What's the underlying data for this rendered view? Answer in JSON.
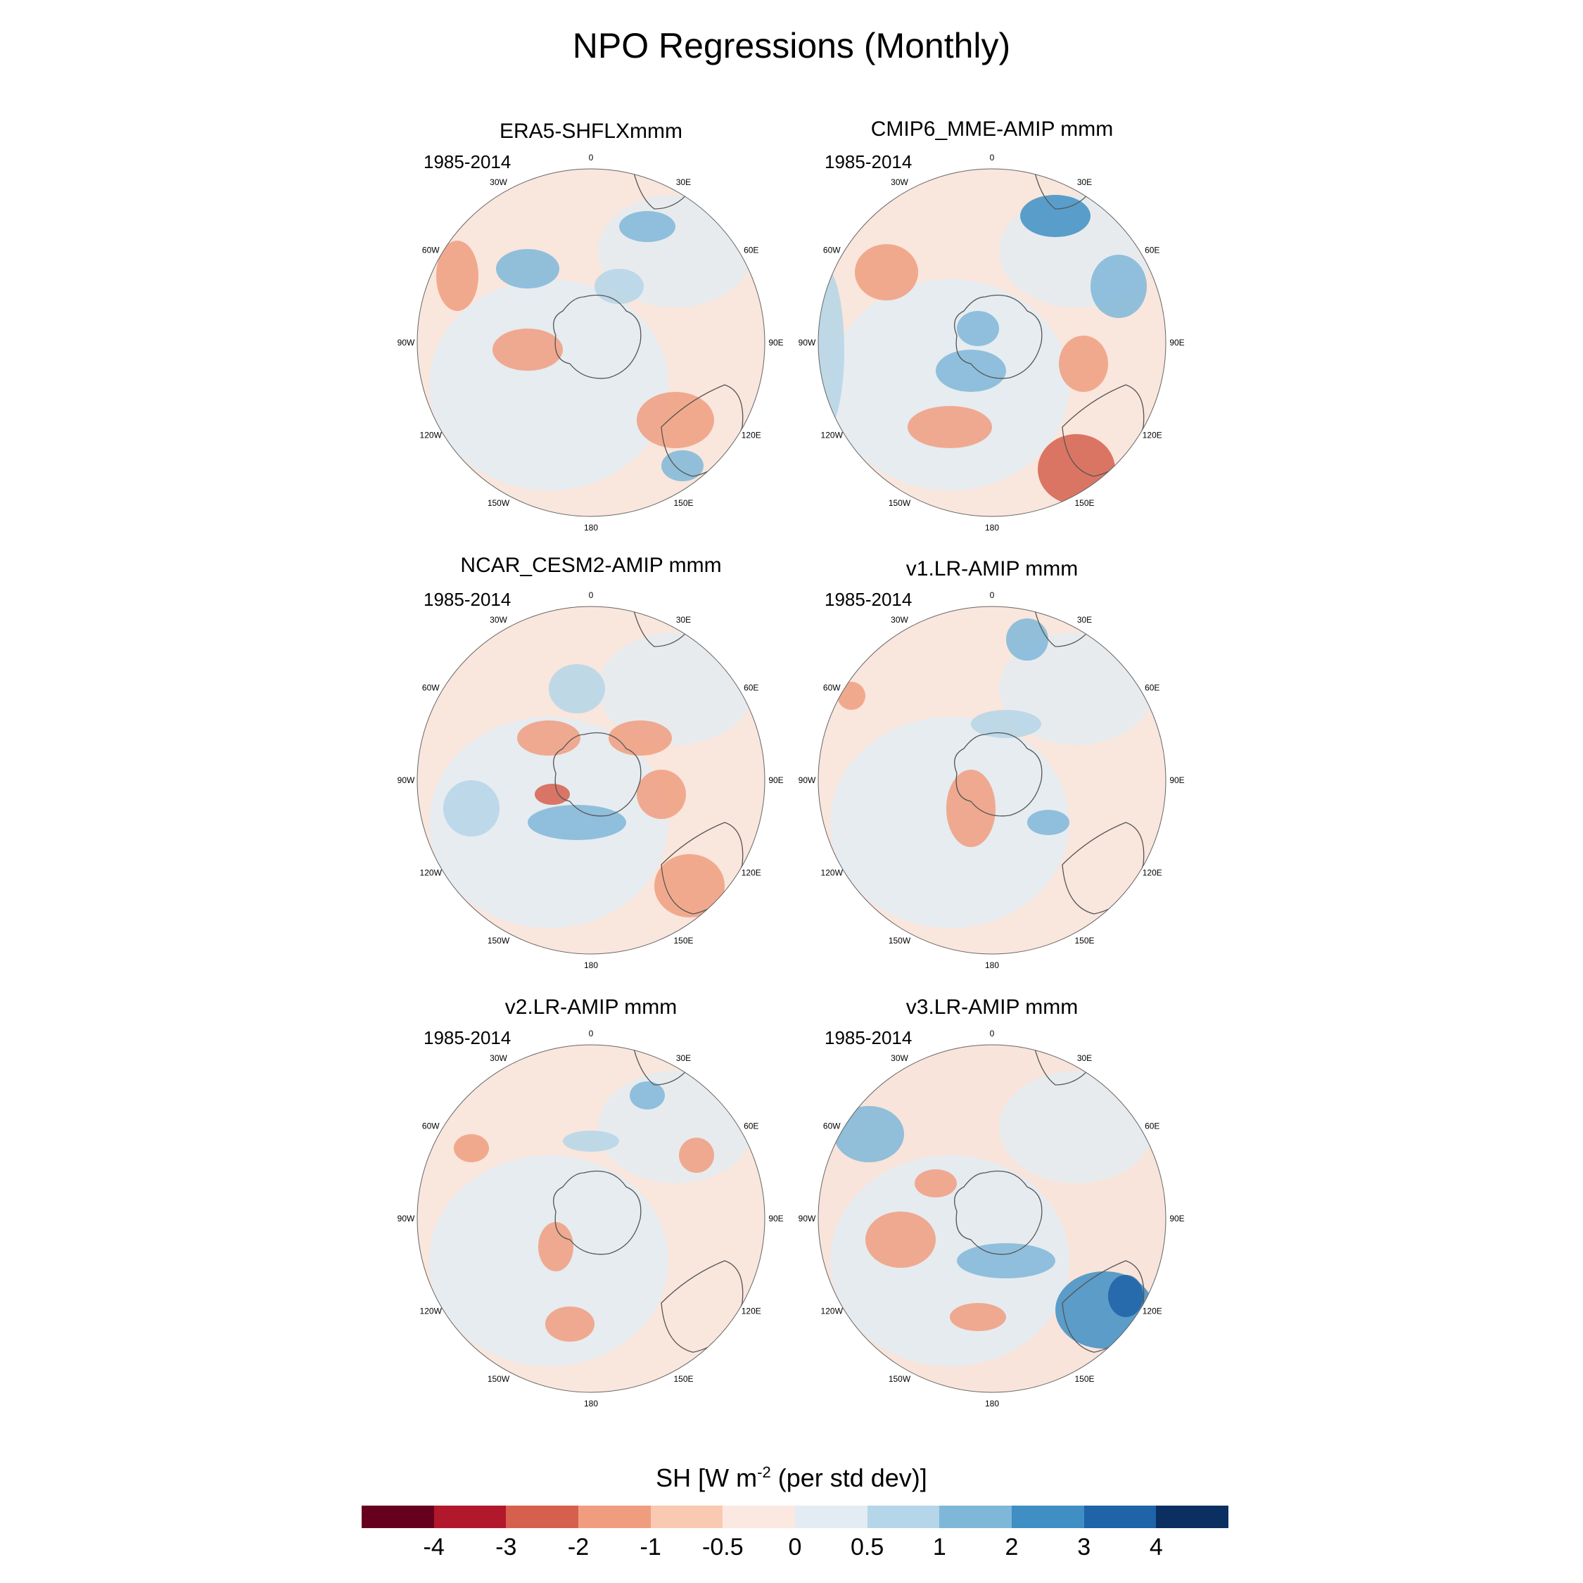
{
  "title": "NPO Regressions (Monthly)",
  "panels": [
    {
      "title": "ERA5-SHFLXmmm",
      "period": "1985-2014"
    },
    {
      "title": "CMIP6_MME-AMIP  mmm",
      "period": "1985-2014"
    },
    {
      "title": "NCAR_CESM2-AMIP  mmm",
      "period": "1985-2014"
    },
    {
      "title": "v1.LR-AMIP  mmm",
      "period": "1985-2014"
    },
    {
      "title": "v2.LR-AMIP  mmm",
      "period": "1985-2014"
    },
    {
      "title": "v3.LR-AMIP  mmm",
      "period": "1985-2014"
    }
  ],
  "lon_labels": [
    "0",
    "30E",
    "60E",
    "90E",
    "120E",
    "150E",
    "180",
    "150W",
    "120W",
    "90W",
    "60W",
    "30W"
  ],
  "colorbar": {
    "title_prefix": "SH [W m",
    "title_exp": "-2",
    "title_suffix": " (per std dev)]",
    "ticks": [
      "-4",
      "-3",
      "-2",
      "-1",
      "-0.5",
      "0",
      "0.5",
      "1",
      "2",
      "3",
      "4"
    ],
    "colors": [
      "#67001f",
      "#b2182b",
      "#d6604d",
      "#f09d7f",
      "#f9c9b1",
      "#fbe9e1",
      "#e3ecf3",
      "#b5d5e8",
      "#7fb7d8",
      "#3f8fc4",
      "#1f63a8",
      "#0b2f61"
    ]
  }
}
